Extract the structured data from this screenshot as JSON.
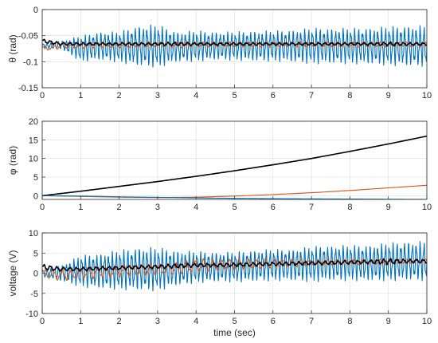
{
  "chart_data": [
    {
      "type": "line",
      "ylabel": "θ (rad)",
      "xlabel": "",
      "xlim": [
        0,
        10
      ],
      "ylim": [
        -0.15,
        0
      ],
      "xticks": [
        "0",
        "1",
        "2",
        "3",
        "4",
        "5",
        "6",
        "7",
        "8",
        "9",
        "10"
      ],
      "yticks": [
        "0",
        "-0.05",
        "-0.1",
        "-0.15"
      ],
      "ytick_values": [
        0,
        -0.05,
        -0.1,
        -0.15
      ],
      "grid": true,
      "series": [
        {
          "color": "#0072BD",
          "x": [
            0,
            0.5,
            1,
            1.5,
            2,
            2.5,
            3,
            3.5,
            4,
            4.5,
            5,
            5.5,
            6,
            6.5,
            7,
            7.5,
            8,
            8.5,
            9,
            9.5,
            10
          ],
          "y": [
            -0.07,
            -0.068,
            -0.075,
            -0.07,
            -0.072,
            -0.07,
            -0.07,
            -0.072,
            -0.07,
            -0.07,
            -0.07,
            -0.07,
            -0.07,
            -0.07,
            -0.07,
            -0.07,
            -0.07,
            -0.07,
            -0.07,
            -0.07,
            -0.07
          ],
          "envelope": [
            0.006,
            0.008,
            0.025,
            0.028,
            0.03,
            0.04,
            0.042,
            0.03,
            0.03,
            0.028,
            0.028,
            0.03,
            0.03,
            0.032,
            0.035,
            0.035,
            0.035,
            0.036,
            0.038,
            0.04,
            0.04
          ],
          "osc_period": 0.1
        },
        {
          "color": "#D95319",
          "x": [
            0,
            0.5,
            1,
            1.5,
            2,
            2.5,
            3,
            3.5,
            4,
            4.5,
            5,
            5.5,
            6,
            6.5,
            7,
            7.5,
            8,
            8.5,
            9,
            9.5,
            10
          ],
          "y": [
            -0.075,
            -0.07,
            -0.07,
            -0.068,
            -0.069,
            -0.068,
            -0.067,
            -0.068,
            -0.067,
            -0.067,
            -0.067,
            -0.067,
            -0.067,
            -0.067,
            -0.067,
            -0.067,
            -0.067,
            -0.067,
            -0.067,
            -0.067,
            -0.067
          ],
          "envelope": [
            0.006,
            0.005,
            0.005,
            0.005,
            0.005,
            0.005,
            0.005,
            0.006,
            0.005,
            0.005,
            0.005,
            0.005,
            0.005,
            0.005,
            0.005,
            0.005,
            0.005,
            0.005,
            0.005,
            0.005,
            0.005
          ],
          "osc_period": 0.23
        },
        {
          "color": "#000000",
          "x": [
            0,
            0.5,
            1,
            1.5,
            2,
            2.5,
            3,
            3.5,
            4,
            4.5,
            5,
            5.5,
            6,
            6.5,
            7,
            7.5,
            8,
            8.5,
            9,
            9.5,
            10
          ],
          "y": [
            -0.06,
            -0.066,
            -0.066,
            -0.066,
            -0.066,
            -0.066,
            -0.066,
            -0.066,
            -0.066,
            -0.066,
            -0.066,
            -0.066,
            -0.066,
            -0.066,
            -0.066,
            -0.066,
            -0.066,
            -0.066,
            -0.066,
            -0.066,
            -0.066
          ],
          "envelope": [
            0.004,
            0.003,
            0.003,
            0.003,
            0.003,
            0.003,
            0.003,
            0.004,
            0.003,
            0.003,
            0.003,
            0.003,
            0.003,
            0.003,
            0.003,
            0.003,
            0.003,
            0.003,
            0.004,
            0.003,
            0.003
          ],
          "osc_period": 0.17
        }
      ]
    },
    {
      "type": "line",
      "ylabel": "φ (rad)",
      "xlabel": "",
      "xlim": [
        0,
        10
      ],
      "ylim": [
        -1,
        20
      ],
      "xticks": [
        "0",
        "1",
        "2",
        "3",
        "4",
        "5",
        "6",
        "7",
        "8",
        "9",
        "10"
      ],
      "yticks": [
        "20",
        "15",
        "10",
        "5",
        "0"
      ],
      "ytick_values": [
        20,
        15,
        10,
        5,
        0
      ],
      "grid": true,
      "series": [
        {
          "color": "#000000",
          "x": [
            0,
            1,
            2,
            3,
            4,
            5,
            6,
            7,
            8,
            9,
            10
          ],
          "y": [
            0,
            1.2,
            2.5,
            3.8,
            5.2,
            6.7,
            8.3,
            10.0,
            11.9,
            13.9,
            16.0
          ]
        },
        {
          "color": "#D95319",
          "x": [
            0,
            1,
            2,
            3,
            4,
            5,
            6,
            7,
            8,
            9,
            10
          ],
          "y": [
            0,
            -0.2,
            -0.4,
            -0.5,
            -0.4,
            -0.1,
            0.3,
            0.8,
            1.4,
            2.1,
            2.8
          ]
        },
        {
          "color": "#0072BD",
          "x": [
            0,
            1,
            2,
            3,
            4,
            5,
            6,
            7,
            8,
            9,
            10
          ],
          "y": [
            0,
            -0.1,
            -0.3,
            -0.45,
            -0.6,
            -0.7,
            -0.8,
            -0.85,
            -0.9,
            -0.95,
            -1.0
          ]
        }
      ]
    },
    {
      "type": "line",
      "ylabel": "voltage (V)",
      "xlabel": "time (sec)",
      "xlim": [
        0,
        10
      ],
      "ylim": [
        -10,
        10
      ],
      "xticks": [
        "0",
        "1",
        "2",
        "3",
        "4",
        "5",
        "6",
        "7",
        "8",
        "9",
        "10"
      ],
      "yticks": [
        "10",
        "5",
        "0",
        "-5",
        "-10"
      ],
      "ytick_values": [
        10,
        5,
        0,
        -5,
        -10
      ],
      "grid": true,
      "series": [
        {
          "color": "#0072BD",
          "x": [
            0,
            0.5,
            1,
            1.5,
            2,
            2.5,
            3,
            3.5,
            4,
            4.5,
            5,
            5.5,
            6,
            6.5,
            7,
            7.5,
            8,
            8.5,
            9,
            9.5,
            10
          ],
          "y": [
            0,
            0,
            0.5,
            0.5,
            0.8,
            1,
            1,
            1.2,
            1.5,
            1.5,
            1.5,
            1.8,
            2,
            2,
            2.2,
            2.5,
            2.5,
            2.5,
            2.8,
            3,
            3
          ],
          "envelope": [
            1,
            2,
            4,
            4.5,
            5,
            5.5,
            5.5,
            4.5,
            4,
            3.8,
            3.8,
            4,
            4,
            4,
            4.5,
            4.5,
            4.5,
            4.6,
            4.8,
            5,
            5
          ],
          "osc_period": 0.1
        },
        {
          "color": "#D95319",
          "x": [
            0,
            0.5,
            1,
            1.5,
            2,
            2.5,
            3,
            3.5,
            4,
            4.5,
            5,
            5.5,
            6,
            6.5,
            7,
            7.5,
            8,
            8.5,
            9,
            9.5,
            10
          ],
          "y": [
            0,
            -0.5,
            0,
            0.2,
            0.5,
            0.8,
            1,
            1.2,
            2,
            2,
            2.2,
            2.3,
            2.5,
            2.5,
            2.6,
            2.7,
            2.8,
            2.8,
            2.8,
            2.9,
            3
          ],
          "envelope": [
            1,
            1.5,
            1.5,
            1.5,
            1.5,
            1.5,
            1.5,
            1.5,
            1.8,
            1.5,
            1.5,
            1.3,
            1.2,
            1,
            0.8,
            0.8,
            0.7,
            0.7,
            0.7,
            0.6,
            0.6
          ],
          "osc_period": 0.23
        },
        {
          "color": "#000000",
          "x": [
            0,
            0.5,
            1,
            1.5,
            2,
            2.5,
            3,
            3.5,
            4,
            4.5,
            5,
            5.5,
            6,
            6.5,
            7,
            7.5,
            8,
            8.5,
            9,
            9.5,
            10
          ],
          "y": [
            1.5,
            1,
            1,
            1.2,
            1.3,
            1.5,
            1.6,
            1.8,
            2,
            2,
            2.1,
            2.2,
            2.3,
            2.4,
            2.5,
            2.6,
            2.7,
            2.8,
            2.9,
            3,
            3
          ],
          "envelope": [
            0.8,
            0.5,
            0.5,
            0.5,
            0.5,
            0.5,
            0.5,
            0.6,
            0.5,
            0.5,
            0.5,
            0.5,
            0.5,
            0.5,
            0.5,
            0.5,
            0.5,
            0.5,
            0.8,
            0.5,
            0.5
          ],
          "osc_period": 0.17
        }
      ]
    }
  ]
}
